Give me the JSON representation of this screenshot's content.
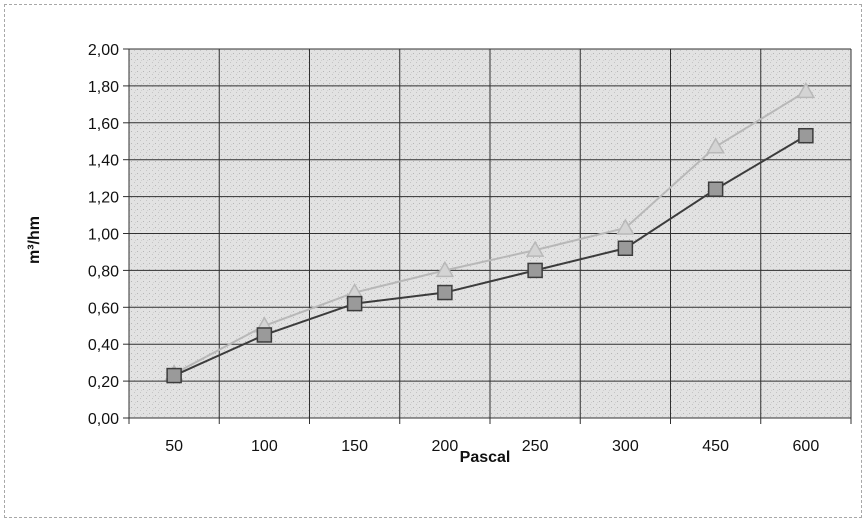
{
  "chart_data": {
    "type": "line",
    "title": "",
    "xlabel": "Pascal",
    "ylabel": "m³/hm",
    "categories": [
      "50",
      "100",
      "150",
      "200",
      "250",
      "300",
      "450",
      "600"
    ],
    "ylim": [
      0,
      2
    ],
    "y_ticks": [
      "0,00",
      "0,20",
      "0,40",
      "0,60",
      "0,80",
      "1,00",
      "1,20",
      "1,40",
      "1,60",
      "1,80",
      "2,00"
    ],
    "grid": true,
    "legend": "none",
    "series": [
      {
        "marker": "triangle",
        "color": "#b8b8b8",
        "marker_fill": "#d4d4d4",
        "values": [
          0.24,
          0.5,
          0.68,
          0.8,
          0.91,
          1.03,
          1.47,
          1.77
        ]
      },
      {
        "marker": "square",
        "color": "#3c3c3c",
        "marker_fill": "#9a9a9a",
        "values": [
          0.23,
          0.45,
          0.62,
          0.68,
          0.8,
          0.92,
          1.24,
          1.53
        ]
      }
    ],
    "colors": {
      "plot_background": "#e4e4e4",
      "gridline": "#303030",
      "axis": "#303030"
    }
  }
}
